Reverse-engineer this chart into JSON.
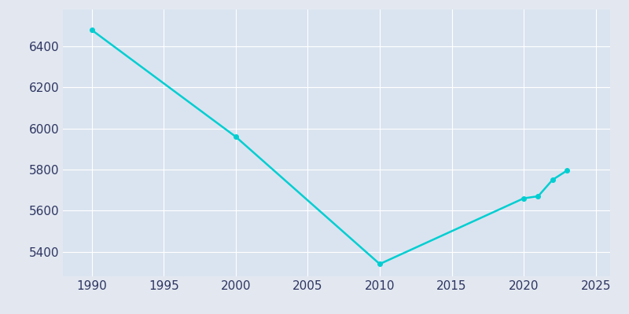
{
  "years": [
    1990,
    2000,
    2010,
    2020,
    2021,
    2022,
    2023
  ],
  "population": [
    6480,
    5960,
    5340,
    5660,
    5670,
    5750,
    5795
  ],
  "line_color": "#00CED1",
  "marker": "o",
  "marker_size": 4,
  "line_width": 1.8,
  "bg_outer": "#e3e8f0",
  "bg_inner": "#dae4f0",
  "grid_color": "#ffffff",
  "xlabel": "",
  "ylabel": "",
  "xlim": [
    1988,
    2026
  ],
  "ylim": [
    5280,
    6580
  ],
  "xticks": [
    1990,
    1995,
    2000,
    2005,
    2010,
    2015,
    2020,
    2025
  ],
  "yticks": [
    5400,
    5600,
    5800,
    6000,
    6200,
    6400
  ]
}
